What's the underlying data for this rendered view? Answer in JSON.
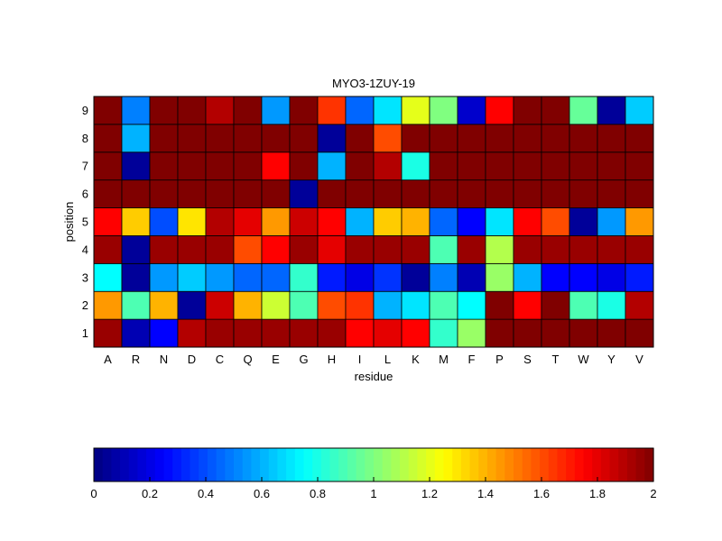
{
  "chart_data": {
    "type": "heatmap",
    "title": "MYO3-1ZUY-19",
    "xlabel": "residue",
    "ylabel": "position",
    "x_categories": [
      "A",
      "R",
      "N",
      "D",
      "C",
      "Q",
      "E",
      "G",
      "H",
      "I",
      "L",
      "K",
      "M",
      "F",
      "P",
      "S",
      "T",
      "W",
      "Y",
      "V"
    ],
    "y_categories": [
      "1",
      "2",
      "3",
      "4",
      "5",
      "6",
      "7",
      "8",
      "9"
    ],
    "values": [
      [
        1.95,
        0.1,
        0.25,
        1.9,
        1.95,
        1.95,
        1.95,
        1.95,
        1.95,
        1.75,
        1.8,
        1.75,
        0.85,
        1.05,
        2.0,
        2.0,
        2.0,
        2.0,
        2.0,
        2.0
      ],
      [
        1.45,
        0.9,
        1.4,
        0.05,
        1.85,
        1.4,
        1.15,
        0.9,
        1.6,
        1.65,
        0.6,
        0.7,
        0.9,
        0.75,
        2.0,
        1.75,
        2.0,
        0.9,
        0.8,
        1.9
      ],
      [
        0.75,
        0.05,
        0.55,
        0.65,
        0.55,
        0.45,
        0.45,
        0.85,
        0.3,
        0.2,
        0.35,
        0.05,
        0.5,
        0.1,
        1.05,
        0.6,
        0.25,
        0.25,
        0.2,
        0.3
      ],
      [
        1.95,
        0.05,
        1.95,
        1.95,
        1.95,
        1.6,
        1.75,
        1.95,
        1.8,
        1.95,
        1.95,
        1.95,
        0.9,
        1.95,
        1.1,
        1.95,
        1.95,
        1.95,
        1.95,
        1.95
      ],
      [
        1.75,
        1.35,
        0.4,
        1.3,
        1.9,
        1.8,
        1.45,
        1.85,
        1.75,
        0.6,
        1.35,
        1.4,
        0.45,
        0.25,
        0.7,
        1.75,
        1.6,
        0.05,
        0.55,
        1.45
      ],
      [
        2.0,
        2.0,
        2.0,
        2.0,
        2.0,
        2.0,
        2.0,
        0.05,
        2.0,
        2.0,
        2.0,
        2.0,
        2.0,
        2.0,
        2.0,
        2.0,
        2.0,
        2.0,
        2.0,
        2.0
      ],
      [
        2.0,
        0.05,
        2.0,
        2.0,
        2.0,
        2.0,
        1.75,
        2.0,
        0.6,
        2.0,
        1.9,
        0.8,
        2.0,
        2.0,
        2.0,
        2.0,
        2.0,
        2.0,
        2.0,
        2.0
      ],
      [
        2.0,
        0.6,
        2.0,
        2.0,
        2.0,
        2.0,
        2.0,
        2.0,
        0.05,
        2.0,
        1.6,
        2.0,
        2.0,
        2.0,
        2.0,
        2.0,
        2.0,
        2.0,
        2.0,
        2.0
      ],
      [
        2.0,
        0.5,
        2.0,
        2.0,
        1.9,
        2.0,
        0.55,
        2.0,
        1.65,
        0.45,
        0.7,
        1.2,
        1.0,
        0.15,
        1.75,
        2.0,
        2.0,
        0.95,
        0.05,
        0.65
      ]
    ],
    "colormap": "jet",
    "color_range": [
      0,
      2
    ],
    "colorbar": {
      "orientation": "horizontal",
      "placement": "bottom",
      "ticks": [
        "0",
        "0.2",
        "0.4",
        "0.6",
        "0.8",
        "1",
        "1.2",
        "1.4",
        "1.6",
        "1.8",
        "2"
      ]
    },
    "grid": true
  }
}
